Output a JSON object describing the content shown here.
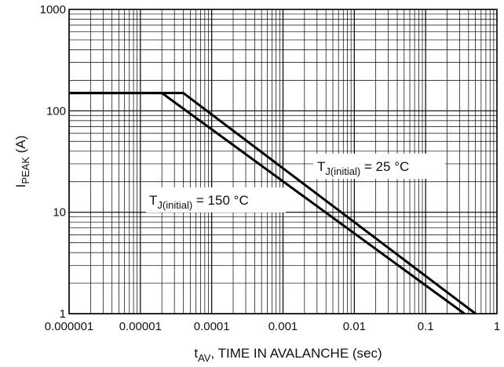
{
  "chart_data": {
    "type": "line",
    "x_scale": "log",
    "y_scale": "log",
    "xlim": [
      1e-06,
      1
    ],
    "ylim": [
      1,
      1000
    ],
    "grid": true,
    "x_ticks": [
      "0.000001",
      "0.00001",
      "0.0001",
      "0.001",
      "0.01",
      "0.1",
      "1"
    ],
    "y_ticks": [
      "1",
      "10",
      "100",
      "1000"
    ],
    "xlabel": {
      "main": "t",
      "sub": "AV",
      "rest": ", TIME IN AVALANCHE (sec)"
    },
    "ylabel": {
      "main": "I",
      "sub": "PEAK",
      "rest": " (A)"
    },
    "series": [
      {
        "name": "T_J(initial) = 25 °C",
        "x": [
          1e-06,
          4e-05,
          0.5
        ],
        "y": [
          150,
          150,
          1
        ]
      },
      {
        "name": "T_J(initial) = 150 °C",
        "x": [
          1e-06,
          2e-05,
          0.35
        ],
        "y": [
          150,
          150,
          1
        ]
      }
    ],
    "annotations": [
      {
        "main": "T",
        "sub": "J(initial)",
        "rest": " = 25 °C"
      },
      {
        "main": "T",
        "sub": "J(initial)",
        "rest": " = 150 °C"
      }
    ]
  }
}
